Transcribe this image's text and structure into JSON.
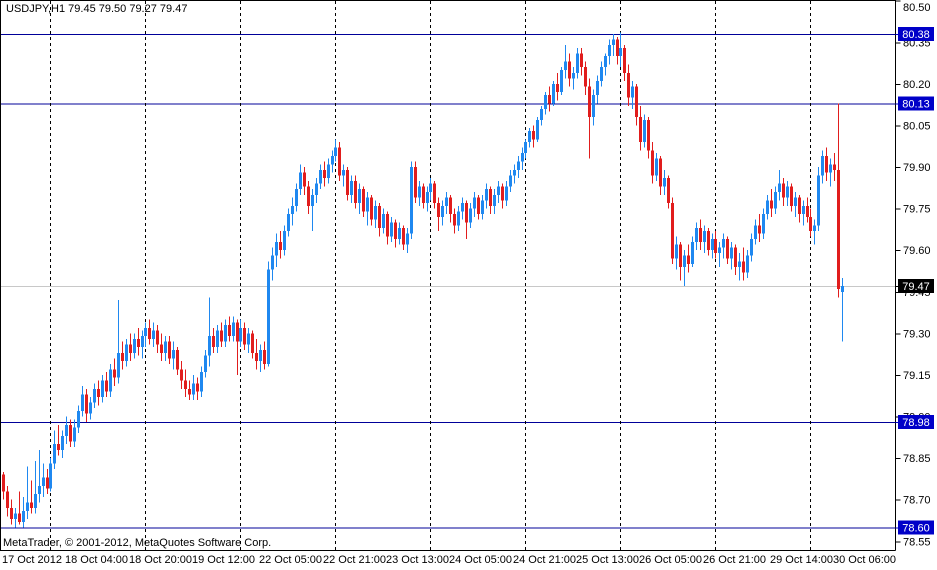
{
  "header": {
    "title_text": "USDJPY,H1 79.45 79.50 79.27 79.47",
    "symbol": "USDJPY",
    "period": "H1",
    "quote": {
      "open": "79.45",
      "high": "79.50",
      "low": "79.27",
      "close": "79.47"
    }
  },
  "footer": {
    "copyright": "MetaTrader, © 2001-2012, MetaQuotes Software Corp."
  },
  "colors": {
    "background": "#ffffff",
    "bull": "#1f88f0",
    "bear": "#e11d1d",
    "level_line": "#000099",
    "level_badge_bg": "#0000c8",
    "current_badge_bg": "#000000",
    "badge_text": "#ffffff",
    "current_price_line": "#c8c8c8",
    "separator_line": "#000000",
    "axis_text": "#000000",
    "frame": "#000000"
  },
  "price_axis": {
    "ticks": [
      "80.50",
      "80.35",
      "80.20",
      "80.05",
      "79.90",
      "79.75",
      "79.60",
      "79.45",
      "79.30",
      "79.15",
      "79.00",
      "78.85",
      "78.70",
      "78.55"
    ]
  },
  "time_axis": {
    "labels": [
      {
        "label": "17 Oct 2012",
        "bar": 0
      },
      {
        "label": "18 Oct 04:00",
        "bar": 16
      },
      {
        "label": "18 Oct 20:00",
        "bar": 32
      },
      {
        "label": "19 Oct 12:00",
        "bar": 48
      },
      {
        "label": "22 Oct 05:00",
        "bar": 65
      },
      {
        "label": "22 Oct 21:00",
        "bar": 81
      },
      {
        "label": "23 Oct 13:00",
        "bar": 97
      },
      {
        "label": "24 Oct 05:00",
        "bar": 113
      },
      {
        "label": "24 Oct 21:00",
        "bar": 129
      },
      {
        "label": "25 Oct 13:00",
        "bar": 145
      },
      {
        "label": "26 Oct 05:00",
        "bar": 161
      },
      {
        "label": "26 Oct 21:00",
        "bar": 177
      },
      {
        "label": "29 Oct 14:00",
        "bar": 194
      },
      {
        "label": "30 Oct 06:00",
        "bar": 210
      }
    ]
  },
  "levels": {
    "lines": [
      {
        "price": 80.38,
        "label": "80.38"
      },
      {
        "price": 80.13,
        "label": "80.13"
      },
      {
        "price": 78.98,
        "label": "78.98"
      },
      {
        "price": 78.6,
        "label": "78.60"
      }
    ],
    "current": {
      "price": 79.47,
      "label": "79.47"
    }
  },
  "chart_data": {
    "type": "candlestick",
    "title": "USDJPY,H1",
    "ylim": [
      78.52,
      80.5026
    ],
    "grid": false,
    "legend": "none",
    "current_price": 79.47,
    "day_separator_bars": [
      12,
      36,
      60,
      84,
      108,
      132,
      156,
      180,
      204
    ],
    "candles": [
      [
        78.79,
        78.8,
        78.7,
        78.73
      ],
      [
        78.73,
        78.75,
        78.64,
        78.67
      ],
      [
        78.67,
        78.7,
        78.61,
        78.63
      ],
      [
        78.63,
        78.67,
        78.6,
        78.65
      ],
      [
        78.65,
        78.73,
        78.61,
        78.62
      ],
      [
        78.62,
        78.71,
        78.6,
        78.66
      ],
      [
        78.66,
        78.82,
        78.63,
        78.69
      ],
      [
        78.69,
        78.77,
        78.65,
        78.67
      ],
      [
        78.67,
        78.84,
        78.65,
        78.72
      ],
      [
        78.72,
        78.88,
        78.69,
        78.75
      ],
      [
        78.75,
        78.83,
        78.71,
        78.78
      ],
      [
        78.78,
        78.81,
        78.72,
        78.74
      ],
      [
        78.74,
        78.85,
        78.73,
        78.83
      ],
      [
        78.83,
        78.95,
        78.81,
        78.9
      ],
      [
        78.9,
        78.97,
        78.86,
        78.88
      ],
      [
        78.88,
        78.95,
        78.85,
        78.93
      ],
      [
        78.93,
        79.0,
        78.9,
        78.97
      ],
      [
        78.97,
        78.99,
        78.89,
        78.91
      ],
      [
        78.91,
        78.99,
        78.89,
        78.96
      ],
      [
        78.96,
        79.04,
        78.94,
        79.02
      ],
      [
        79.02,
        79.11,
        79.0,
        79.08
      ],
      [
        79.08,
        79.1,
        78.98,
        79.01
      ],
      [
        79.01,
        79.07,
        78.99,
        79.05
      ],
      [
        79.05,
        79.12,
        79.03,
        79.1
      ],
      [
        79.1,
        79.13,
        79.04,
        79.07
      ],
      [
        79.07,
        79.15,
        79.05,
        79.13
      ],
      [
        79.13,
        79.16,
        79.07,
        79.09
      ],
      [
        79.09,
        79.19,
        79.07,
        79.17
      ],
      [
        79.17,
        79.21,
        79.11,
        79.14
      ],
      [
        79.14,
        79.42,
        79.12,
        79.23
      ],
      [
        79.23,
        79.27,
        79.17,
        79.2
      ],
      [
        79.2,
        79.28,
        79.18,
        79.26
      ],
      [
        79.26,
        79.3,
        79.2,
        79.23
      ],
      [
        79.23,
        79.3,
        79.21,
        79.28
      ],
      [
        79.28,
        79.32,
        79.22,
        79.25
      ],
      [
        79.25,
        79.31,
        79.21,
        79.29
      ],
      [
        79.29,
        79.34,
        79.25,
        79.32
      ],
      [
        79.32,
        79.35,
        79.26,
        79.28
      ],
      [
        79.28,
        79.34,
        79.25,
        79.31
      ],
      [
        79.31,
        79.33,
        79.23,
        79.26
      ],
      [
        79.26,
        79.3,
        79.2,
        79.23
      ],
      [
        79.23,
        79.29,
        79.2,
        79.27
      ],
      [
        79.27,
        79.29,
        79.19,
        79.21
      ],
      [
        79.21,
        79.27,
        79.17,
        79.24
      ],
      [
        79.24,
        79.25,
        79.15,
        79.17
      ],
      [
        79.17,
        79.2,
        79.1,
        79.13
      ],
      [
        79.13,
        79.17,
        79.07,
        79.1
      ],
      [
        79.1,
        79.13,
        79.06,
        79.08
      ],
      [
        79.08,
        79.15,
        79.06,
        79.12
      ],
      [
        79.12,
        79.14,
        79.06,
        79.09
      ],
      [
        79.09,
        79.18,
        79.07,
        79.16
      ],
      [
        79.16,
        79.24,
        79.14,
        79.22
      ],
      [
        79.22,
        79.43,
        79.18,
        79.29
      ],
      [
        79.29,
        79.32,
        79.23,
        79.25
      ],
      [
        79.25,
        79.33,
        79.23,
        79.31
      ],
      [
        79.31,
        79.34,
        79.25,
        79.27
      ],
      [
        79.27,
        79.35,
        79.25,
        79.33
      ],
      [
        79.33,
        79.36,
        79.27,
        79.29
      ],
      [
        79.29,
        79.36,
        79.27,
        79.34
      ],
      [
        79.34,
        79.35,
        79.15,
        79.27
      ],
      [
        79.27,
        79.35,
        79.25,
        79.32
      ],
      [
        79.32,
        79.34,
        79.24,
        79.26
      ],
      [
        79.26,
        79.32,
        79.23,
        79.3
      ],
      [
        79.3,
        79.31,
        79.21,
        79.23
      ],
      [
        79.23,
        79.28,
        79.17,
        79.2
      ],
      [
        79.2,
        79.26,
        79.16,
        79.24
      ],
      [
        79.24,
        79.27,
        79.17,
        79.19
      ],
      [
        79.19,
        79.56,
        79.18,
        79.53
      ],
      [
        79.53,
        79.61,
        79.49,
        79.58
      ],
      [
        79.58,
        79.66,
        79.54,
        79.63
      ],
      [
        79.63,
        79.67,
        79.57,
        79.6
      ],
      [
        79.6,
        79.69,
        79.58,
        79.67
      ],
      [
        79.67,
        79.75,
        79.65,
        79.73
      ],
      [
        79.73,
        79.79,
        79.69,
        79.76
      ],
      [
        79.76,
        79.84,
        79.74,
        79.82
      ],
      [
        79.82,
        79.91,
        79.8,
        79.88
      ],
      [
        79.88,
        79.9,
        79.8,
        79.83
      ],
      [
        79.83,
        79.85,
        79.73,
        79.76
      ],
      [
        79.76,
        79.82,
        79.67,
        79.8
      ],
      [
        79.8,
        79.86,
        79.77,
        79.84
      ],
      [
        79.84,
        79.91,
        79.82,
        79.89
      ],
      [
        79.89,
        79.92,
        79.83,
        79.86
      ],
      [
        79.86,
        79.93,
        79.84,
        79.91
      ],
      [
        79.91,
        79.96,
        79.88,
        79.94
      ],
      [
        79.94,
        80.0,
        79.92,
        79.97
      ],
      [
        79.97,
        79.99,
        79.85,
        79.87
      ],
      [
        79.87,
        79.91,
        79.83,
        79.89
      ],
      [
        79.89,
        79.9,
        79.78,
        79.8
      ],
      [
        79.8,
        79.87,
        79.77,
        79.85
      ],
      [
        79.85,
        79.87,
        79.75,
        79.77
      ],
      [
        79.77,
        79.84,
        79.73,
        79.82
      ],
      [
        79.82,
        79.83,
        79.72,
        79.74
      ],
      [
        79.74,
        79.81,
        79.69,
        79.79
      ],
      [
        79.79,
        79.8,
        79.69,
        79.71
      ],
      [
        79.71,
        79.78,
        79.68,
        79.76
      ],
      [
        79.76,
        79.77,
        79.65,
        79.68
      ],
      [
        79.68,
        79.75,
        79.66,
        79.73
      ],
      [
        79.73,
        79.74,
        79.62,
        79.65
      ],
      [
        79.65,
        79.72,
        79.63,
        79.7
      ],
      [
        79.7,
        79.71,
        79.61,
        79.64
      ],
      [
        79.64,
        79.7,
        79.62,
        79.68
      ],
      [
        79.68,
        79.69,
        79.6,
        79.62
      ],
      [
        79.62,
        79.68,
        79.59,
        79.66
      ],
      [
        79.66,
        79.92,
        79.64,
        79.9
      ],
      [
        79.9,
        79.92,
        79.77,
        79.79
      ],
      [
        79.79,
        79.85,
        79.76,
        79.83
      ],
      [
        79.83,
        79.84,
        79.75,
        79.77
      ],
      [
        79.77,
        79.83,
        79.74,
        79.81
      ],
      [
        79.81,
        79.86,
        79.78,
        79.84
      ],
      [
        79.84,
        79.85,
        79.75,
        79.77
      ],
      [
        79.77,
        79.79,
        79.67,
        79.72
      ],
      [
        79.72,
        79.78,
        79.69,
        79.76
      ],
      [
        79.76,
        79.81,
        79.73,
        79.79
      ],
      [
        79.79,
        79.8,
        79.7,
        79.73
      ],
      [
        79.73,
        79.75,
        79.66,
        79.69
      ],
      [
        79.69,
        79.76,
        79.67,
        79.74
      ],
      [
        79.74,
        79.79,
        79.71,
        79.77
      ],
      [
        79.77,
        79.78,
        79.64,
        79.7
      ],
      [
        79.7,
        79.77,
        79.68,
        79.75
      ],
      [
        79.75,
        79.81,
        79.72,
        79.79
      ],
      [
        79.79,
        79.8,
        79.71,
        79.73
      ],
      [
        79.73,
        79.8,
        79.71,
        79.78
      ],
      [
        79.78,
        79.84,
        79.75,
        79.82
      ],
      [
        79.82,
        79.83,
        79.73,
        79.76
      ],
      [
        79.76,
        79.82,
        79.73,
        79.8
      ],
      [
        79.8,
        79.85,
        79.77,
        79.83
      ],
      [
        79.83,
        79.84,
        79.75,
        79.78
      ],
      [
        79.78,
        79.85,
        79.76,
        79.83
      ],
      [
        79.83,
        79.89,
        79.81,
        79.87
      ],
      [
        79.87,
        79.91,
        79.84,
        79.89
      ],
      [
        79.89,
        79.94,
        79.86,
        79.92
      ],
      [
        79.92,
        79.97,
        79.89,
        79.95
      ],
      [
        79.95,
        80.0,
        79.93,
        79.99
      ],
      [
        79.99,
        80.04,
        79.97,
        80.03
      ],
      [
        80.03,
        80.05,
        79.97,
        80.0
      ],
      [
        80.0,
        80.08,
        79.99,
        80.07
      ],
      [
        80.07,
        80.12,
        80.05,
        80.11
      ],
      [
        80.11,
        80.17,
        80.09,
        80.16
      ],
      [
        80.16,
        80.19,
        80.1,
        80.13
      ],
      [
        80.13,
        80.21,
        80.12,
        80.2
      ],
      [
        80.2,
        80.24,
        80.14,
        80.17
      ],
      [
        80.17,
        80.26,
        80.16,
        80.25
      ],
      [
        80.25,
        80.34,
        80.22,
        80.28
      ],
      [
        80.28,
        80.31,
        80.19,
        80.22
      ],
      [
        80.22,
        80.26,
        80.18,
        80.24
      ],
      [
        80.24,
        80.33,
        80.22,
        80.31
      ],
      [
        80.31,
        80.33,
        80.23,
        80.26
      ],
      [
        80.26,
        80.28,
        80.16,
        80.19
      ],
      [
        80.19,
        80.22,
        79.93,
        80.08
      ],
      [
        80.08,
        80.18,
        80.05,
        80.16
      ],
      [
        80.16,
        80.23,
        80.13,
        80.21
      ],
      [
        80.21,
        80.28,
        80.19,
        80.26
      ],
      [
        80.26,
        80.31,
        80.23,
        80.3
      ],
      [
        80.3,
        80.36,
        80.27,
        80.34
      ],
      [
        80.34,
        80.38,
        80.3,
        80.36
      ],
      [
        80.36,
        80.37,
        80.27,
        80.3
      ],
      [
        80.3,
        80.385,
        80.26,
        80.33
      ],
      [
        80.33,
        80.34,
        80.21,
        80.24
      ],
      [
        80.24,
        80.27,
        80.12,
        80.15
      ],
      [
        80.15,
        80.21,
        80.11,
        80.19
      ],
      [
        80.19,
        80.2,
        80.05,
        80.08
      ],
      [
        80.08,
        80.12,
        79.96,
        79.99
      ],
      [
        79.99,
        80.09,
        79.97,
        80.07
      ],
      [
        80.07,
        80.08,
        79.93,
        79.96
      ],
      [
        79.96,
        79.99,
        79.84,
        79.87
      ],
      [
        79.87,
        79.95,
        79.85,
        79.93
      ],
      [
        79.93,
        79.94,
        79.8,
        79.83
      ],
      [
        79.83,
        79.89,
        79.8,
        79.86
      ],
      [
        79.86,
        79.87,
        79.75,
        79.77
      ],
      [
        79.77,
        79.79,
        79.55,
        79.57
      ],
      [
        79.57,
        79.65,
        79.53,
        79.62
      ],
      [
        79.62,
        79.63,
        79.49,
        79.54
      ],
      [
        79.54,
        79.6,
        79.47,
        79.58
      ],
      [
        79.58,
        79.62,
        79.52,
        79.55
      ],
      [
        79.55,
        79.65,
        79.54,
        79.63
      ],
      [
        79.63,
        79.7,
        79.6,
        79.68
      ],
      [
        79.68,
        79.71,
        79.6,
        79.63
      ],
      [
        79.63,
        79.69,
        79.59,
        79.67
      ],
      [
        79.67,
        79.68,
        79.58,
        79.6
      ],
      [
        79.6,
        79.66,
        79.57,
        79.64
      ],
      [
        79.64,
        79.67,
        79.57,
        79.59
      ],
      [
        79.59,
        79.63,
        79.54,
        79.61
      ],
      [
        79.61,
        79.66,
        79.57,
        79.64
      ],
      [
        79.64,
        79.65,
        79.55,
        79.57
      ],
      [
        79.57,
        79.63,
        79.53,
        79.61
      ],
      [
        79.61,
        79.62,
        79.51,
        79.54
      ],
      [
        79.54,
        79.59,
        79.49,
        79.56
      ],
      [
        79.56,
        79.61,
        79.49,
        79.52
      ],
      [
        79.52,
        79.6,
        79.5,
        79.58
      ],
      [
        79.58,
        79.66,
        79.56,
        79.64
      ],
      [
        79.64,
        79.71,
        79.62,
        79.69
      ],
      [
        79.69,
        79.73,
        79.63,
        79.66
      ],
      [
        79.66,
        79.75,
        79.64,
        79.73
      ],
      [
        79.73,
        79.8,
        79.71,
        79.78
      ],
      [
        79.78,
        79.82,
        79.72,
        79.75
      ],
      [
        79.75,
        79.83,
        79.73,
        79.81
      ],
      [
        79.81,
        79.89,
        79.78,
        79.84
      ],
      [
        79.84,
        79.86,
        79.76,
        79.79
      ],
      [
        79.79,
        79.85,
        79.76,
        79.83
      ],
      [
        79.83,
        79.84,
        79.74,
        79.76
      ],
      [
        79.76,
        79.81,
        79.72,
        79.79
      ],
      [
        79.79,
        79.8,
        79.7,
        79.73
      ],
      [
        79.73,
        79.78,
        79.69,
        79.76
      ],
      [
        79.76,
        79.79,
        79.7,
        79.72
      ],
      [
        79.72,
        79.75,
        79.65,
        79.67
      ],
      [
        79.67,
        79.71,
        79.62,
        79.69
      ],
      [
        79.69,
        79.9,
        79.67,
        79.87
      ],
      [
        79.87,
        79.96,
        79.84,
        79.94
      ],
      [
        79.94,
        79.97,
        79.85,
        79.88
      ],
      [
        79.88,
        79.93,
        79.83,
        79.91
      ],
      [
        79.91,
        79.95,
        79.85,
        79.89
      ],
      [
        79.89,
        80.13,
        79.43,
        79.46
      ],
      [
        79.45,
        79.5,
        79.27,
        79.47
      ]
    ]
  }
}
